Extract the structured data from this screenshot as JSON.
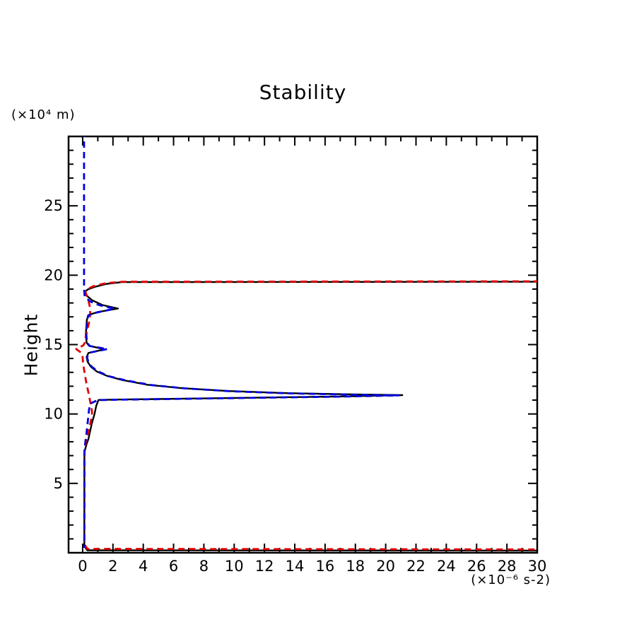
{
  "chart_data": {
    "type": "line",
    "title": "Stability",
    "ylabel": "Height",
    "y_unit_label": "(×10⁴ m)",
    "x_unit_label": "(×10⁻⁶ s-2)",
    "xlim": [
      -0.93,
      30
    ],
    "ylim": [
      0,
      30
    ],
    "grid": false,
    "legend": "none",
    "axis_style": "boxed-inward-ticks",
    "x_axis": {
      "major_ticks": [
        0,
        2,
        4,
        6,
        8,
        10,
        12,
        14,
        16,
        18,
        20,
        22,
        24,
        26,
        28,
        30
      ],
      "minor_ticks": [
        1,
        3,
        5,
        7,
        9,
        11,
        13,
        15,
        17,
        19,
        21,
        23,
        25,
        27,
        29
      ]
    },
    "y_axis": {
      "major_ticks": [
        5,
        10,
        15,
        20,
        25
      ],
      "minor_ticks": [
        1,
        2,
        3,
        4,
        6,
        7,
        8,
        9,
        11,
        12,
        13,
        14,
        16,
        17,
        18,
        19,
        21,
        22,
        23,
        24,
        26,
        27,
        28,
        29
      ]
    },
    "series": [
      {
        "name": "stability-profile-black",
        "color": "#000000",
        "line_style": "solid",
        "points": [
          [
            30,
            19.53
          ],
          [
            2.6,
            19.5
          ],
          [
            1.6,
            19.38
          ],
          [
            0.8,
            19.16
          ],
          [
            0.35,
            18.98
          ],
          [
            0.13,
            18.8
          ],
          [
            0.3,
            18.5
          ],
          [
            0.62,
            18.2
          ],
          [
            1.3,
            17.85
          ],
          [
            2.33,
            17.6
          ],
          [
            1.0,
            17.35
          ],
          [
            0.42,
            17.15
          ],
          [
            0.28,
            16.8
          ],
          [
            0.25,
            16.4
          ],
          [
            0.21,
            15.7
          ],
          [
            0.26,
            15.15
          ],
          [
            0.42,
            14.92
          ],
          [
            1.45,
            14.66
          ],
          [
            0.38,
            14.4
          ],
          [
            0.26,
            14.1
          ],
          [
            0.33,
            13.75
          ],
          [
            0.55,
            13.4
          ],
          [
            0.95,
            13.05
          ],
          [
            1.6,
            12.75
          ],
          [
            2.6,
            12.45
          ],
          [
            4.3,
            12.1
          ],
          [
            6.5,
            11.86
          ],
          [
            9.5,
            11.66
          ],
          [
            13.5,
            11.5
          ],
          [
            17.5,
            11.42
          ],
          [
            21.1,
            11.36
          ],
          [
            17,
            11.26
          ],
          [
            13,
            11.2
          ],
          [
            9,
            11.14
          ],
          [
            5,
            11.08
          ],
          [
            2.5,
            11.04
          ],
          [
            1.05,
            11.01
          ],
          [
            0.9,
            10.6
          ],
          [
            0.78,
            10.0
          ],
          [
            0.6,
            9.3
          ],
          [
            0.48,
            8.7
          ],
          [
            0.38,
            8.2
          ],
          [
            0.25,
            7.8
          ],
          [
            0.14,
            7.35
          ],
          [
            0.115,
            7.0
          ],
          [
            0.11,
            0.5
          ],
          [
            0.3,
            0.18
          ],
          [
            30,
            0.16
          ]
        ]
      },
      {
        "name": "stability-profile-red",
        "color": "#e00000",
        "line_style": "dashed",
        "points": [
          [
            30,
            19.56
          ],
          [
            2.6,
            19.53
          ],
          [
            1.5,
            19.42
          ],
          [
            0.7,
            19.2
          ],
          [
            0.3,
            19.0
          ],
          [
            0.18,
            18.82
          ],
          [
            0.26,
            18.55
          ],
          [
            0.38,
            18.2
          ],
          [
            0.48,
            17.7
          ],
          [
            0.5,
            17.2
          ],
          [
            0.42,
            16.6
          ],
          [
            0.3,
            16.0
          ],
          [
            0.2,
            15.55
          ],
          [
            0.17,
            15.2
          ],
          [
            0.05,
            14.95
          ],
          [
            -0.42,
            14.68
          ],
          [
            -0.08,
            14.4
          ],
          [
            0.0,
            14.1
          ],
          [
            0.02,
            13.7
          ],
          [
            0.08,
            13.3
          ],
          [
            0.15,
            12.8
          ],
          [
            0.25,
            12.2
          ],
          [
            0.37,
            11.6
          ],
          [
            0.48,
            11.0
          ],
          [
            0.58,
            10.5
          ],
          [
            0.62,
            10.1
          ],
          [
            0.58,
            9.7
          ],
          [
            0.48,
            9.2
          ],
          [
            0.37,
            8.7
          ],
          [
            0.26,
            8.2
          ],
          [
            0.17,
            7.7
          ],
          [
            0.12,
            7.2
          ],
          [
            0.11,
            0.6
          ],
          [
            0.32,
            0.28
          ],
          [
            30,
            0.24
          ]
        ]
      },
      {
        "name": "stability-profile-blue",
        "color": "#0000dd",
        "line_style": "dashed",
        "points": [
          [
            0.09,
            30
          ],
          [
            0.09,
            19.0
          ],
          [
            0.14,
            18.45
          ],
          [
            0.5,
            18.1
          ],
          [
            1.1,
            17.84
          ],
          [
            2.1,
            17.58
          ],
          [
            0.9,
            17.3
          ],
          [
            0.36,
            17.1
          ],
          [
            0.3,
            16.8
          ],
          [
            0.27,
            16.4
          ],
          [
            0.24,
            15.7
          ],
          [
            0.29,
            15.15
          ],
          [
            0.47,
            14.9
          ],
          [
            1.63,
            14.68
          ],
          [
            0.46,
            14.42
          ],
          [
            0.29,
            14.1
          ],
          [
            0.37,
            13.75
          ],
          [
            0.6,
            13.4
          ],
          [
            1.05,
            13.05
          ],
          [
            1.75,
            12.72
          ],
          [
            2.85,
            12.42
          ],
          [
            4.55,
            12.08
          ],
          [
            6.8,
            11.84
          ],
          [
            9.8,
            11.64
          ],
          [
            13.8,
            11.48
          ],
          [
            17.5,
            11.4
          ],
          [
            20.85,
            11.34
          ],
          [
            17,
            11.25
          ],
          [
            13,
            11.19
          ],
          [
            9,
            11.13
          ],
          [
            5,
            11.07
          ],
          [
            2.5,
            11.03
          ],
          [
            1.0,
            11.0
          ],
          [
            0.5,
            10.75
          ],
          [
            0.42,
            10.3
          ],
          [
            0.36,
            9.7
          ],
          [
            0.3,
            9.1
          ],
          [
            0.24,
            8.5
          ],
          [
            0.18,
            8.0
          ],
          [
            0.13,
            7.5
          ],
          [
            0.11,
            7.1
          ],
          [
            0.11,
            0.35
          ]
        ]
      }
    ]
  }
}
